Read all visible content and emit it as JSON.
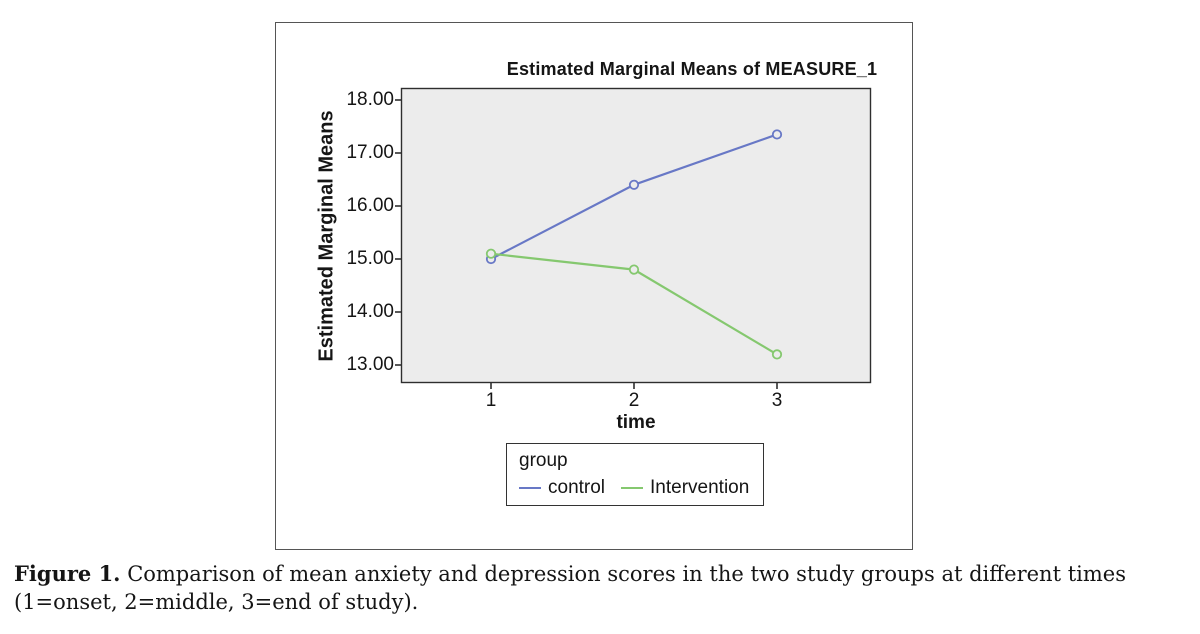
{
  "figure": {
    "caption_label": "Figure 1.",
    "caption_text": "Comparison of mean anxiety and depression scores in the two study groups at different times (1=onset, 2=middle, 3=end of study)."
  },
  "chart_data": {
    "type": "line",
    "title": "Estimated Marginal Means of MEASURE_1",
    "xlabel": "time",
    "ylabel": "Estimated Marginal Means",
    "legend_title": "group",
    "legend_position": "bottom",
    "grid": false,
    "plot_background": "#ececec",
    "axis_color": "#2e2e2e",
    "x": [
      1,
      2,
      3
    ],
    "xtick_labels": [
      "1",
      "2",
      "3"
    ],
    "ytick_values": [
      18,
      17,
      16,
      15,
      14,
      13
    ],
    "ytick_labels": [
      "18.00",
      "17.00",
      "16.00",
      "15.00",
      "14.00",
      "13.00"
    ],
    "ylim": [
      12.66,
      18.23
    ],
    "xlim": [
      0.37,
      3.66
    ],
    "series": [
      {
        "name": "control",
        "color": "#6878c6",
        "values": [
          15.0,
          16.4,
          17.35
        ]
      },
      {
        "name": "Intervention",
        "color": "#85c86f",
        "values": [
          15.1,
          14.8,
          13.2
        ]
      }
    ]
  }
}
